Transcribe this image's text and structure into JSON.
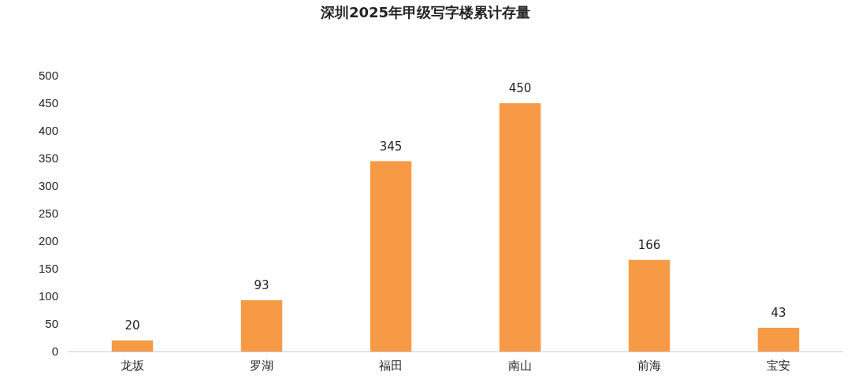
{
  "chart_data": {
    "type": "bar",
    "title": "深圳2025年甲级写字楼累计存量",
    "categories": [
      "龙坂",
      "罗湖",
      "福田",
      "南山",
      "前海",
      "宝安"
    ],
    "values": [
      20,
      93,
      345,
      450,
      166,
      43
    ],
    "color": "#f79a46",
    "ylim": [
      0,
      500
    ],
    "yticks": [
      0,
      50,
      100,
      150,
      200,
      250,
      300,
      350,
      400,
      450,
      500
    ],
    "grid": false,
    "data_labels": true
  }
}
